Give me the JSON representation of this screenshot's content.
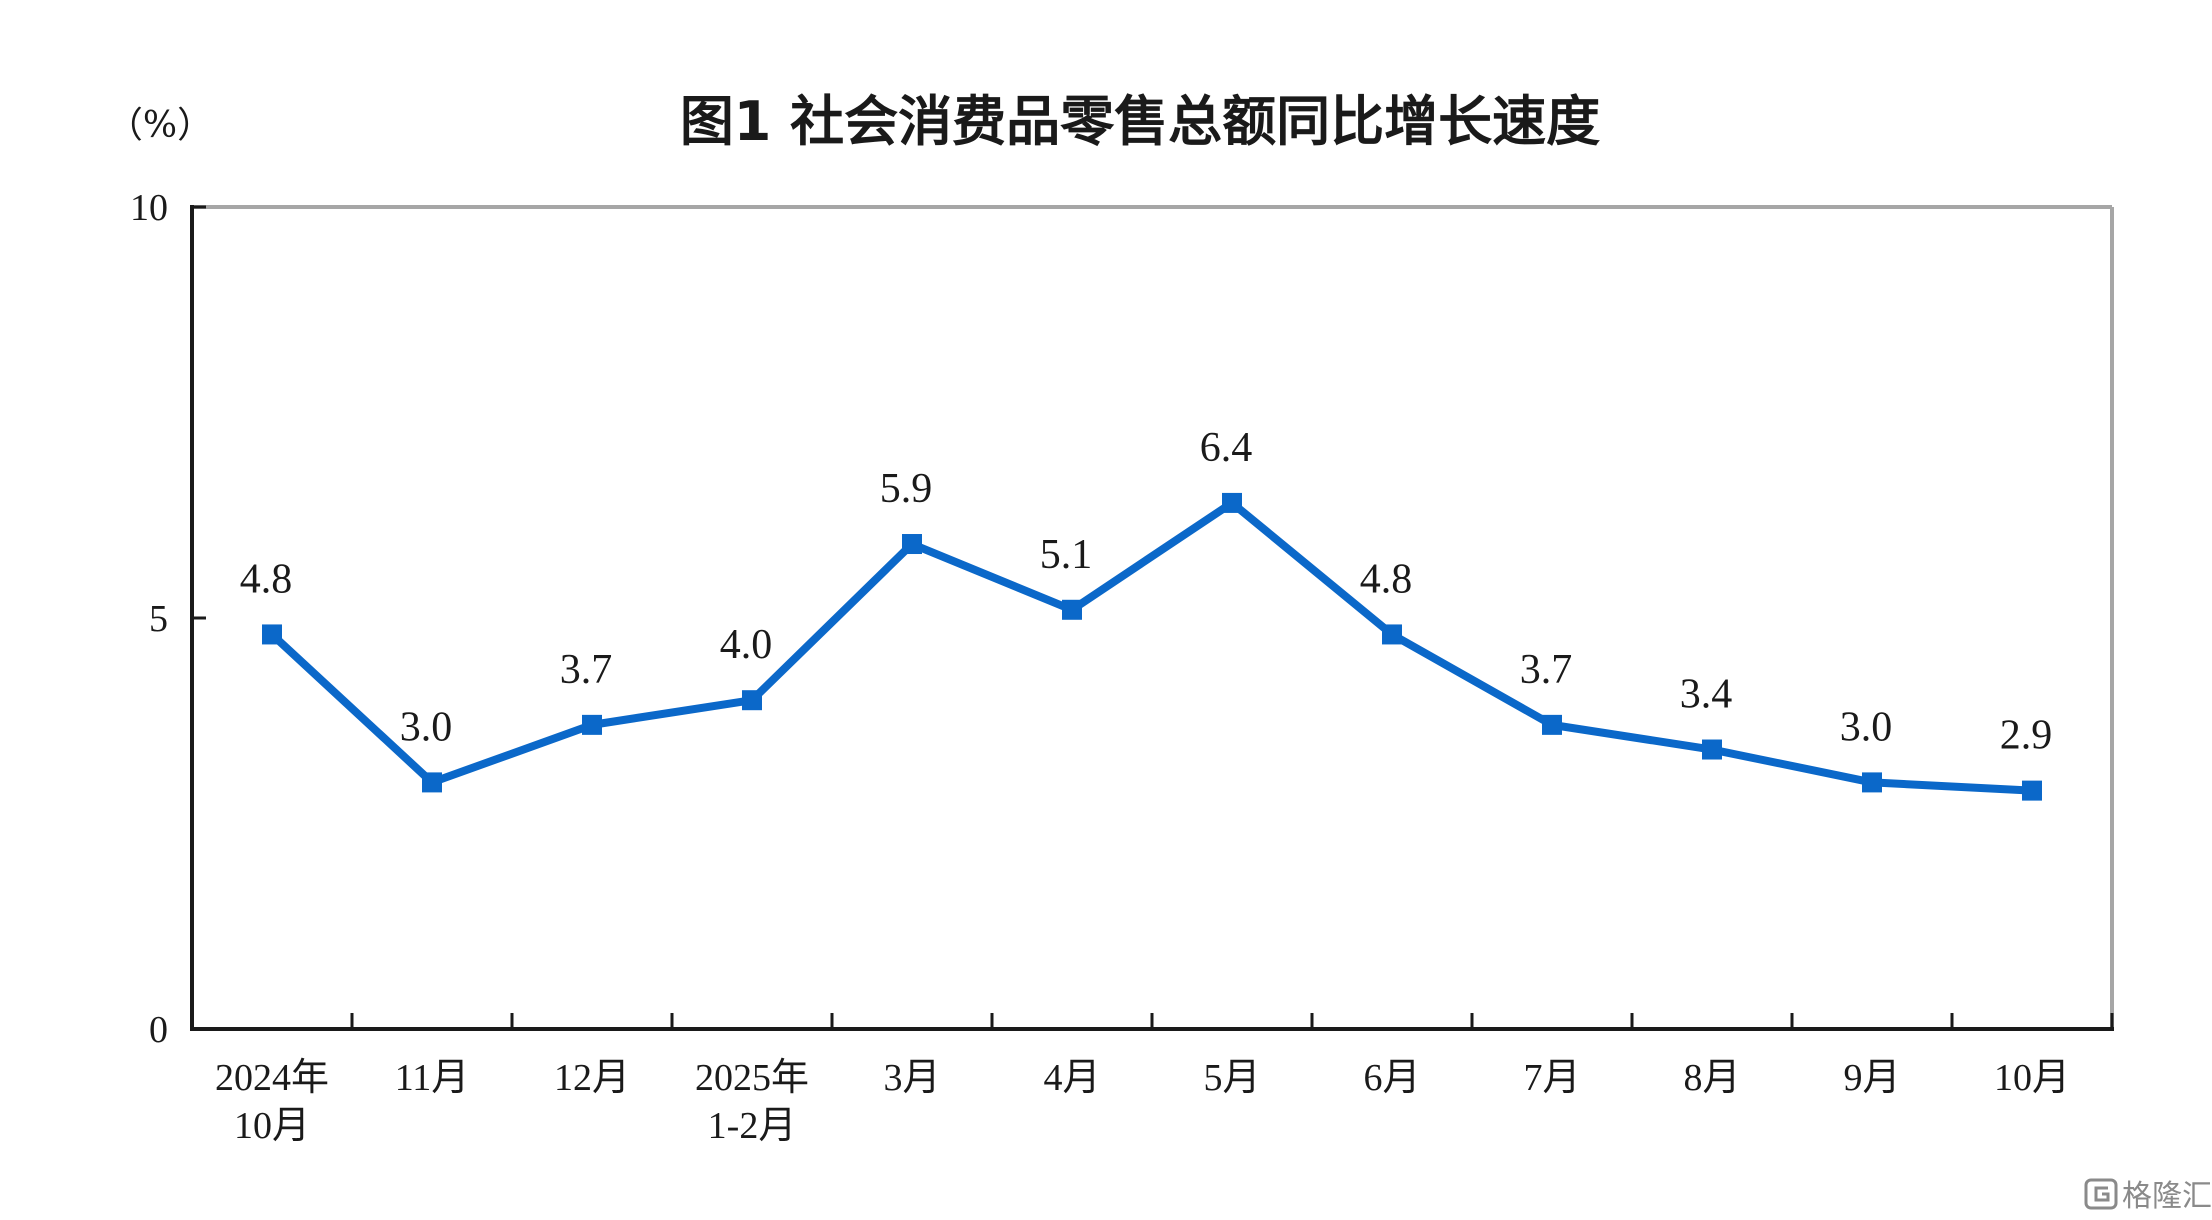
{
  "chart_data": {
    "type": "line",
    "title": "图1  社会消费品零售总额同比增长速度",
    "y_unit": "（%）",
    "categories": [
      [
        "2024年",
        "10月"
      ],
      [
        "11月"
      ],
      [
        "12月"
      ],
      [
        "2025年",
        "1-2月"
      ],
      [
        "3月"
      ],
      [
        "4月"
      ],
      [
        "5月"
      ],
      [
        "6月"
      ],
      [
        "7月"
      ],
      [
        "8月"
      ],
      [
        "9月"
      ],
      [
        "10月"
      ]
    ],
    "values": [
      4.8,
      3.0,
      3.7,
      4.0,
      5.9,
      5.1,
      6.4,
      4.8,
      3.7,
      3.4,
      3.0,
      2.9
    ],
    "value_labels": [
      "4.8",
      "3.0",
      "3.7",
      "4.0",
      "5.9",
      "5.1",
      "6.4",
      "4.8",
      "3.7",
      "3.4",
      "3.0",
      "2.9"
    ],
    "ylim": [
      0,
      10
    ],
    "yticks": [
      0,
      5,
      10
    ],
    "ytick_labels": [
      "0",
      "5",
      "10"
    ],
    "grid": false,
    "series_color": "#0b68c9",
    "frame_color": "#a6a6a6",
    "axis_color": "#1a1a1a"
  },
  "watermark": {
    "icon": "gelonghui-logo-icon",
    "text": "格隆汇"
  }
}
